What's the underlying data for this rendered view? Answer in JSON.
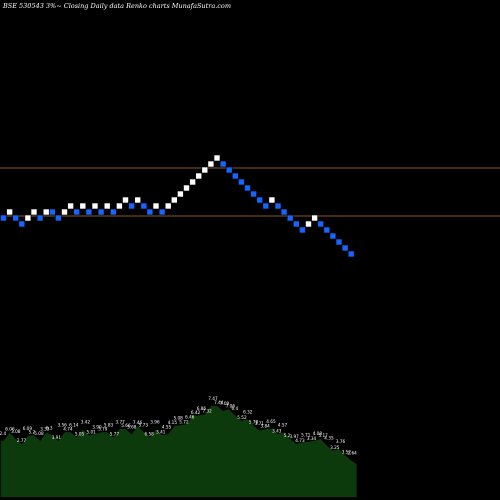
{
  "title": "BSE 530543 3%~  Closing Daily data  Renko  charts MunafaSutra.com",
  "colors": {
    "background": "#000000",
    "up_brick": "#ffffff",
    "down_brick": "#1565ff",
    "brick_edge": "#000000",
    "hline": "#b8732e",
    "volume_fill": "#0d3a0d",
    "volume_outline": "#000000"
  },
  "chart_data": {
    "type": "renko",
    "reference_lines": [
      168,
      216
    ],
    "bricks": [
      {
        "d": "down",
        "y": 218
      },
      {
        "d": "up",
        "y": 212
      },
      {
        "d": "down",
        "y": 218
      },
      {
        "d": "down",
        "y": 224
      },
      {
        "d": "up",
        "y": 218
      },
      {
        "d": "up",
        "y": 212
      },
      {
        "d": "down",
        "y": 218
      },
      {
        "d": "up",
        "y": 212
      },
      {
        "d": "down",
        "y": 212
      },
      {
        "d": "down",
        "y": 218
      },
      {
        "d": "up",
        "y": 212
      },
      {
        "d": "up",
        "y": 206
      },
      {
        "d": "down",
        "y": 212
      },
      {
        "d": "up",
        "y": 206
      },
      {
        "d": "down",
        "y": 212
      },
      {
        "d": "up",
        "y": 206
      },
      {
        "d": "down",
        "y": 212
      },
      {
        "d": "up",
        "y": 206
      },
      {
        "d": "down",
        "y": 212
      },
      {
        "d": "up",
        "y": 206
      },
      {
        "d": "up",
        "y": 200
      },
      {
        "d": "down",
        "y": 206
      },
      {
        "d": "up",
        "y": 200
      },
      {
        "d": "down",
        "y": 206
      },
      {
        "d": "down",
        "y": 212
      },
      {
        "d": "up",
        "y": 206
      },
      {
        "d": "down",
        "y": 212
      },
      {
        "d": "up",
        "y": 206
      },
      {
        "d": "up",
        "y": 200
      },
      {
        "d": "up",
        "y": 194
      },
      {
        "d": "up",
        "y": 188
      },
      {
        "d": "up",
        "y": 182
      },
      {
        "d": "up",
        "y": 176
      },
      {
        "d": "up",
        "y": 170
      },
      {
        "d": "up",
        "y": 164
      },
      {
        "d": "up",
        "y": 158
      },
      {
        "d": "down",
        "y": 164
      },
      {
        "d": "down",
        "y": 170
      },
      {
        "d": "down",
        "y": 176
      },
      {
        "d": "down",
        "y": 182
      },
      {
        "d": "down",
        "y": 188
      },
      {
        "d": "down",
        "y": 194
      },
      {
        "d": "down",
        "y": 200
      },
      {
        "d": "down",
        "y": 206
      },
      {
        "d": "up",
        "y": 200
      },
      {
        "d": "down",
        "y": 206
      },
      {
        "d": "down",
        "y": 212
      },
      {
        "d": "down",
        "y": 218
      },
      {
        "d": "down",
        "y": 224
      },
      {
        "d": "down",
        "y": 230
      },
      {
        "d": "up",
        "y": 224
      },
      {
        "d": "up",
        "y": 218
      },
      {
        "d": "down",
        "y": 224
      },
      {
        "d": "down",
        "y": 230
      },
      {
        "d": "down",
        "y": 236
      },
      {
        "d": "down",
        "y": 242
      },
      {
        "d": "down",
        "y": 248
      },
      {
        "d": "down",
        "y": 254
      }
    ],
    "volume_labels": [
      "2.4",
      "6.06",
      "3.08",
      "2.77",
      "6.09",
      "5.2",
      "5.08",
      "3.33",
      "6.3",
      "3.91",
      "3.56",
      "4.74",
      "6.14",
      "5.05",
      "3.42",
      "5.01",
      "3.90",
      "3.79",
      "5.83",
      "5.77",
      "3.77",
      "5.66",
      "3.68",
      "7.46",
      "5.73",
      "6.58",
      "3.96",
      "3.41",
      "4.55",
      "4.15",
      "5.08",
      "5.72",
      "6.46",
      "6.42",
      "6.86",
      "7.32",
      "7.47",
      "7.44",
      "7.09",
      "7.06",
      "6.4",
      "5.52",
      "6.32",
      "5.78",
      "3.71",
      "3.84",
      "4.65",
      "3.43",
      "4.57",
      "5.2",
      "3.97",
      "4.73",
      "5.71",
      "3.34",
      "4.08",
      "5.17",
      "4.35",
      "3.25",
      "3.76",
      "3.52",
      "2.64"
    ]
  }
}
